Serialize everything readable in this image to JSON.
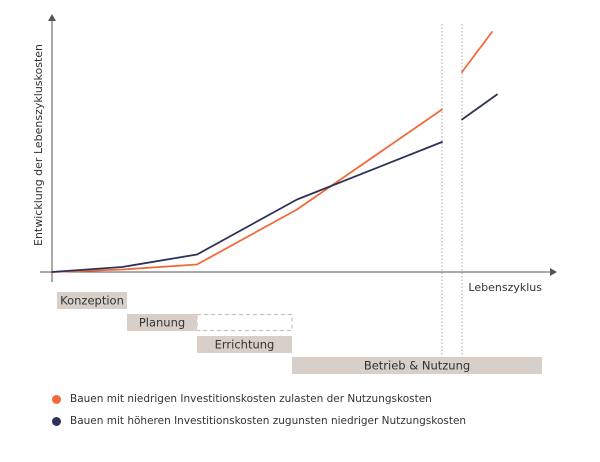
{
  "chart_data": {
    "type": "line",
    "xlabel": "Lebenszyklus",
    "ylabel": "Entwicklung der Lebenszykluskosten",
    "xlim": [
      0,
      100
    ],
    "ylim": [
      0,
      100
    ],
    "series": [
      {
        "name": "Bauen mit niedrigen Investitionskosten zulasten der Nutzungskosten",
        "color": "#f26a3c",
        "segments": [
          [
            [
              0,
              0
            ],
            [
              14,
              1
            ],
            [
              29,
              3
            ],
            [
              49,
              25
            ],
            [
              78,
              65
            ]
          ],
          [
            [
              82,
              80
            ],
            [
              88,
              96
            ]
          ]
        ]
      },
      {
        "name": "Bauen mit höheren Investitionskosten zugunsten niedriger Nutzungskosten",
        "color": "#2d3358",
        "segments": [
          [
            [
              0,
              0
            ],
            [
              14,
              2
            ],
            [
              29,
              7
            ],
            [
              49,
              29
            ],
            [
              78,
              52
            ]
          ],
          [
            [
              82,
              61
            ],
            [
              89,
              71
            ]
          ]
        ]
      }
    ],
    "phases": [
      {
        "label": "Konzeption",
        "start": 1,
        "end": 15
      },
      {
        "label": "Planung",
        "start": 15,
        "end": 29
      },
      {
        "label": "Errichtung",
        "start": 29,
        "end": 48
      },
      {
        "label": "Betrieb & Nutzung",
        "start": 48,
        "end": 98
      }
    ],
    "planning_dashed_extension": {
      "start": 29,
      "end": 48
    },
    "break_markers": [
      78,
      82
    ],
    "colors": {
      "phase_fill": "#d7cfc8",
      "axis": "#555555",
      "dashed": "#c9c2bc"
    }
  }
}
